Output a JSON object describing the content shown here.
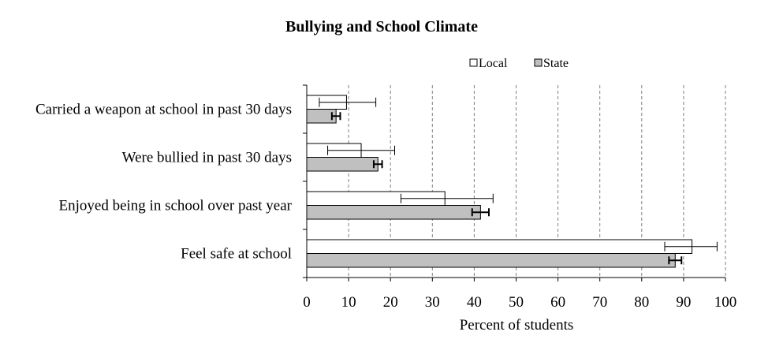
{
  "chart_data": {
    "type": "bar",
    "orientation": "horizontal",
    "title": "Bullying and School Climate",
    "xlabel": "Percent of students",
    "ylabel": "",
    "xlim": [
      0,
      100
    ],
    "xticks": [
      0,
      10,
      20,
      30,
      40,
      50,
      60,
      70,
      80,
      90,
      100
    ],
    "grid": "vertical-dashed",
    "legend_position": "top-right",
    "categories": [
      "Carried a weapon at school in past 30 days",
      "Were bullied in past 30 days",
      "Enjoyed being in school over past year",
      "Feel safe at school"
    ],
    "series": [
      {
        "name": "Local",
        "color": "#ffffff",
        "values": [
          9.5,
          13,
          33,
          92
        ],
        "error_low": [
          3,
          5,
          22.5,
          85.5
        ],
        "error_high": [
          16.5,
          21,
          44.5,
          98
        ]
      },
      {
        "name": "State",
        "color": "#c0c0c0",
        "values": [
          7,
          17,
          41.5,
          88
        ],
        "error_low": [
          6,
          16,
          39.5,
          86.5
        ],
        "error_high": [
          8,
          18,
          43.5,
          89.5
        ]
      }
    ]
  }
}
